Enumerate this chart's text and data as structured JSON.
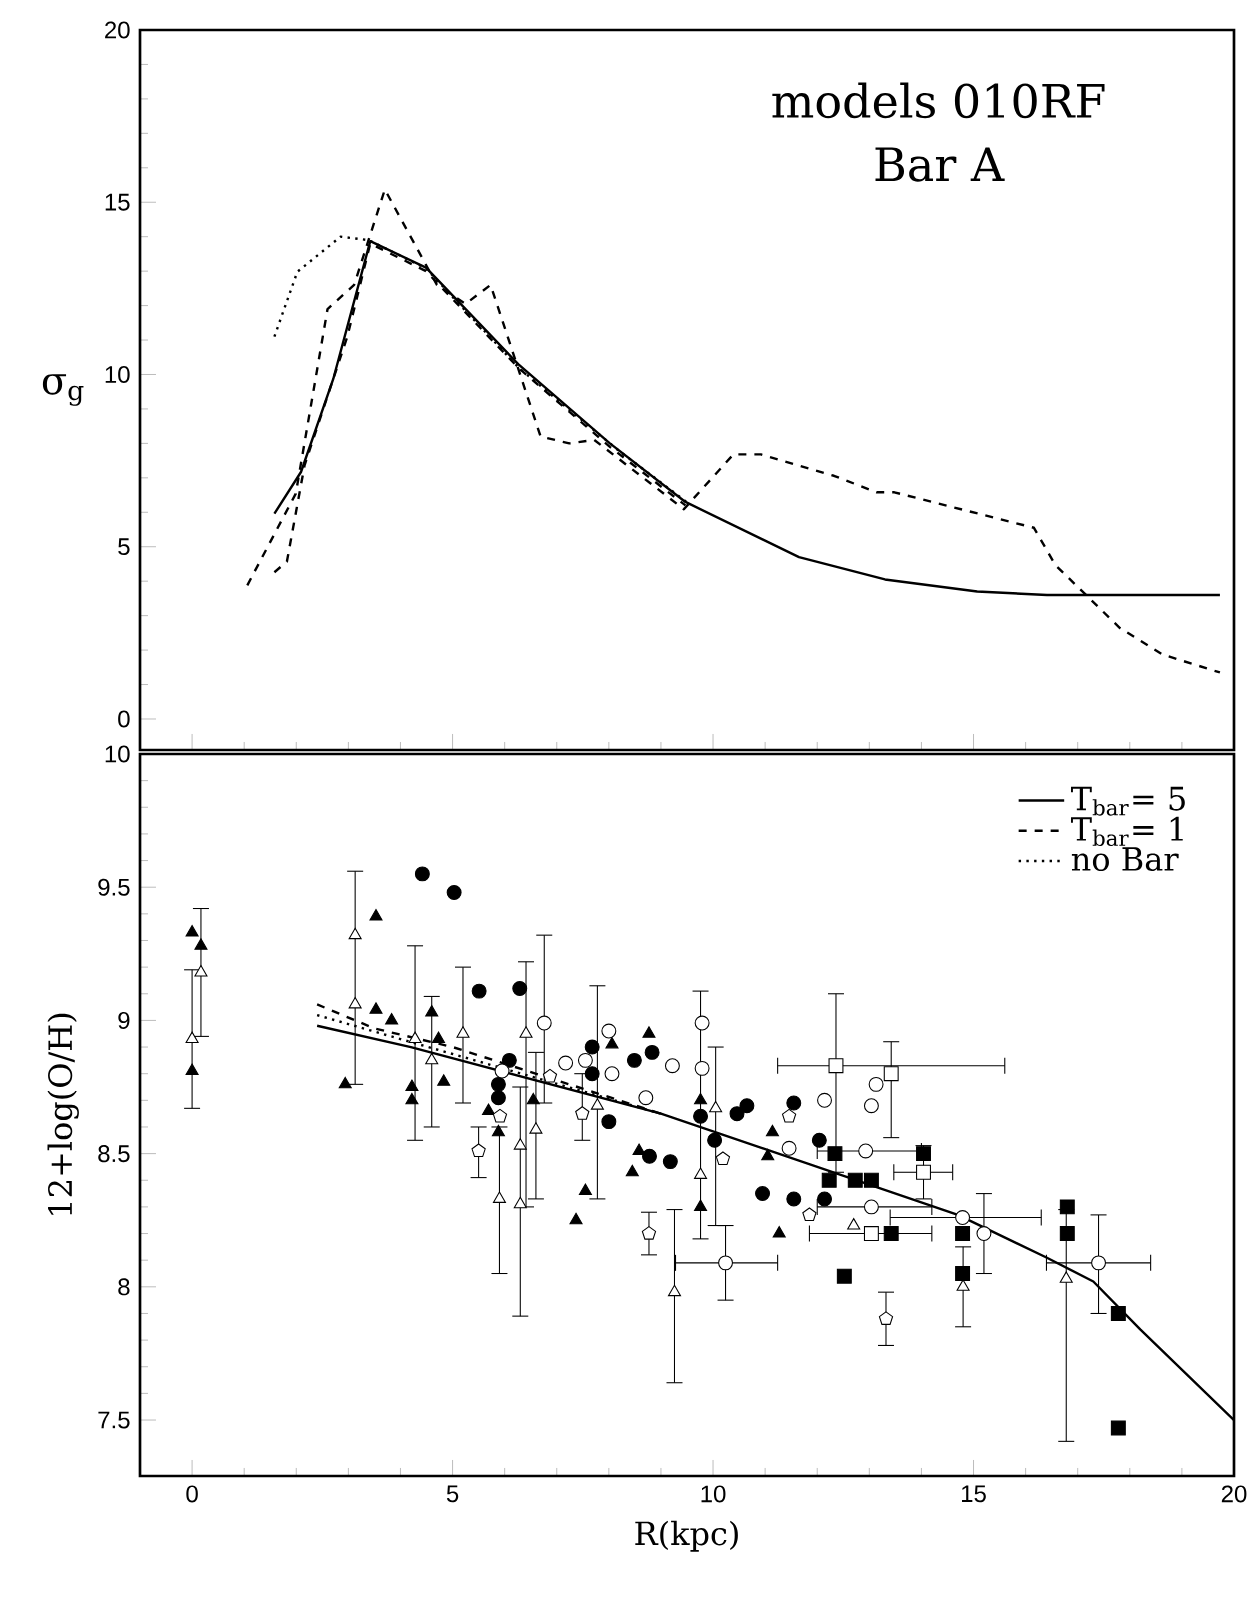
{
  "chart_data": [
    {
      "type": "line",
      "ylabel": "σ$_{g}$",
      "annotations": [
        "models 010RF",
        "Bar A"
      ],
      "xlim": [
        -1,
        20
      ],
      "ylim": [
        -0.9,
        20
      ],
      "xticks": [
        0,
        5,
        10,
        15,
        20
      ],
      "yticks": [
        0,
        5,
        10,
        15,
        20
      ],
      "tick_labels": "y",
      "series": [
        {
          "color": "#000000",
          "line_style": "solid",
          "x": [
            1.58,
            2.09,
            2.71,
            3.42,
            4.49,
            6.26,
            8.02,
            9.47,
            11.65,
            13.3,
            15.07,
            16.41,
            19.73
          ],
          "values": [
            5.96,
            7.17,
            9.87,
            13.87,
            13.1,
            10.3,
            8.0,
            6.3,
            4.7,
            4.05,
            3.7,
            3.6,
            3.6
          ]
        },
        {
          "color": "#000000",
          "line_style": "dashed",
          "x": [
            1.58,
            1.82,
            2.16,
            2.98,
            3.42,
            4.49,
            6.26,
            8.02,
            9.47
          ],
          "values": [
            4.26,
            4.57,
            7.37,
            11.1,
            13.8,
            13.0,
            10.2,
            7.9,
            6.2
          ]
        },
        {
          "color": "#000000",
          "line_style": "dashed",
          "x": [
            1.06,
            1.99,
            2.6,
            3.11,
            3.7,
            4.7,
            5.25,
            5.73,
            6.69,
            7.24,
            7.72,
            9.44,
            10.39,
            10.92,
            12.32,
            13.14,
            13.48,
            16.16,
            16.57,
            17.81,
            18.63,
            19.73
          ],
          "values": [
            3.88,
            6.54,
            11.9,
            12.6,
            15.37,
            12.6,
            12.05,
            12.6,
            8.2,
            8.0,
            8.1,
            6.09,
            7.68,
            7.68,
            7.06,
            6.58,
            6.58,
            5.55,
            4.47,
            2.64,
            1.87,
            1.35
          ]
        },
        {
          "color": "#000000",
          "line_style": "dotted",
          "x": [
            1.58,
            2.02,
            2.85,
            3.39,
            4.49,
            6.28,
            8.19,
            9.5
          ],
          "values": [
            11.1,
            12.98,
            14.0,
            13.9,
            13.08,
            10.18,
            7.79,
            6.29
          ]
        }
      ]
    },
    {
      "type": "scatter",
      "xlabel": "R(kpc)",
      "ylabel": "12+log(O/H)",
      "xlim": [
        -1,
        20
      ],
      "ylim": [
        7.29,
        10
      ],
      "xticks": [
        0,
        5,
        10,
        15,
        20
      ],
      "yticks": [
        7.5,
        8,
        8.5,
        9,
        9.5,
        10
      ],
      "legend": "top right",
      "series": [
        {
          "type": "line",
          "name": "T$_{bar}$= 5",
          "color": "#000000",
          "line_style": "solid",
          "x": [
            2.4,
            4.2,
            9.0,
            14.7,
            16.4,
            17.3,
            18.2,
            20
          ],
          "values": [
            8.98,
            8.9,
            8.65,
            8.27,
            8.11,
            8.02,
            7.84,
            7.5
          ]
        },
        {
          "type": "line",
          "name": "T$_{bar}$= 1",
          "color": "#000000",
          "line_style": "dashed",
          "x": [
            2.4,
            3.5,
            5.0,
            9.0
          ],
          "values": [
            9.06,
            8.97,
            8.9,
            8.65
          ]
        },
        {
          "type": "line",
          "name": "no Bar",
          "color": "#000000",
          "line_style": "dotted",
          "x": [
            2.4,
            4.0,
            9.0
          ],
          "values": [
            9.02,
            8.93,
            8.65
          ]
        },
        {
          "color": "#000000",
          "marker": "triangle filled",
          "x": [
            0,
            0.17,
            0,
            2.94,
            3.53,
            3.53,
            3.83,
            4.22,
            4.22,
            4.6,
            4.73,
            4.83,
            5.69,
            5.88,
            6.55,
            7.55,
            7.37,
            8.45,
            8.58,
            8.77,
            8.06,
            9.76,
            9.76,
            11.14,
            11.05,
            11.27
          ],
          "values": [
            9.33,
            9.28,
            8.81,
            8.76,
            9.39,
            9.04,
            9.0,
            8.75,
            8.7,
            9.03,
            8.93,
            8.77,
            8.66,
            8.58,
            8.7,
            8.36,
            8.25,
            8.43,
            8.51,
            8.95,
            8.91,
            8.7,
            8.3,
            8.58,
            8.49,
            8.2
          ]
        },
        {
          "color": "#000000",
          "marker": "triangle",
          "x": [
            0,
            0.17,
            3.13,
            3.13,
            4.28,
            4.6,
            5.2,
            5.9,
            6.3,
            6.41,
            6.3,
            6.6,
            7.78,
            9.26,
            9.76,
            10.05,
            12.7,
            14.64,
            14.8,
            16.78
          ],
          "values": [
            8.93,
            9.18,
            9.32,
            9.06,
            8.93,
            8.85,
            8.95,
            8.33,
            8.31,
            8.95,
            8.53,
            8.59,
            8.68,
            7.98,
            8.42,
            8.67,
            8.23,
            null,
            8.0,
            8.03
          ],
          "errors": [
            [
              8.67,
              9.19
            ],
            [
              8.94,
              9.42
            ],
            [
              8.76,
              9.56
            ],
            null,
            [
              8.55,
              9.28
            ],
            [
              8.6,
              9.09
            ],
            [
              8.69,
              9.2
            ],
            [
              8.05,
              8.6
            ],
            [
              7.89,
              8.75
            ],
            [
              8.3,
              9.22
            ],
            null,
            [
              8.33,
              8.88
            ],
            [
              8.33,
              9.13
            ],
            [
              7.64,
              8.29
            ],
            [
              8.18,
              9.11
            ],
            [
              8.23,
              8.9
            ],
            null,
            null,
            [
              7.85,
              8.15
            ],
            [
              7.42,
              8.29
            ]
          ]
        },
        {
          "color": "#000000",
          "marker": "circle filled",
          "x": [
            4.42,
            5.03,
            5.51,
            6.29,
            6.09,
            5.88,
            5.88,
            8.0,
            7.68,
            7.68,
            8.49,
            8.83,
            8.78,
            9.18,
            9.76,
            10.03,
            10.46,
            10.65,
            10.95,
            11.55,
            11.55,
            12.04,
            12.14
          ],
          "values": [
            9.55,
            9.48,
            9.11,
            9.12,
            8.85,
            8.76,
            8.71,
            8.62,
            8.8,
            8.9,
            8.85,
            8.88,
            8.49,
            8.47,
            8.64,
            8.55,
            8.65,
            8.68,
            8.35,
            8.69,
            8.33,
            8.55,
            8.33
          ]
        },
        {
          "color": "#000000",
          "marker": "square filled",
          "x": [
            12.34,
            12.23,
            12.73,
            13.04,
            12.52,
            13.42,
            14.04,
            14.79,
            14.79,
            16.8,
            16.8,
            17.78,
            17.78
          ],
          "values": [
            8.5,
            8.4,
            8.4,
            8.4,
            8.04,
            8.2,
            8.5,
            8.2,
            8.05,
            8.3,
            8.2,
            7.9,
            7.47
          ]
        },
        {
          "color": "#000000",
          "marker": "circle",
          "x": [
            6.76,
            5.95,
            7.17,
            7.55,
            8.06,
            8.0,
            8.71,
            9.22,
            9.79,
            9.79,
            10.24,
            11.46,
            12.14,
            13.13,
            13.04,
            12.93,
            13.04,
            14.79,
            15.2,
            17.4
          ],
          "values": [
            8.99,
            8.81,
            8.84,
            8.85,
            8.8,
            8.96,
            8.71,
            8.83,
            8.82,
            8.99,
            8.09,
            8.52,
            8.7,
            8.76,
            8.68,
            8.51,
            8.3,
            8.26,
            8.2,
            8.09
          ],
          "errors": [
            [
              8.69,
              9.32
            ],
            null,
            null,
            null,
            null,
            null,
            null,
            null,
            null,
            null,
            [
              7.95,
              8.23
            ],
            null,
            null,
            null,
            null,
            null,
            null,
            null,
            [
              8.05,
              8.35
            ],
            [
              7.9,
              8.27
            ]
          ],
          "xerrors": [
            null,
            null,
            null,
            null,
            null,
            null,
            null,
            null,
            null,
            null,
            [
              9.28,
              11.24
            ],
            null,
            null,
            null,
            null,
            [
              12.0,
              14.0
            ],
            [
              12.0,
              14.2
            ],
            [
              13.4,
              16.3
            ],
            null,
            [
              16.4,
              18.4
            ]
          ]
        },
        {
          "color": "#000000",
          "marker": "square",
          "x": [
            12.36,
            13.42,
            14.04,
            13.04
          ],
          "values": [
            8.83,
            8.8,
            8.43,
            8.2
          ],
          "errors": [
            [
              8.43,
              9.1
            ],
            [
              8.56,
              8.92
            ],
            [
              8.33,
              8.53
            ],
            null
          ],
          "xerrors": [
            [
              11.24,
              15.6
            ],
            null,
            [
              13.47,
              14.6
            ],
            [
              11.85,
              14.2
            ]
          ]
        },
        {
          "color": "#000000",
          "x": [
            5.5,
            5.91,
            7.49,
            8.77,
            6.87,
            11.46,
            11.85,
            13.32,
            10.19
          ],
          "values": [
            8.51,
            8.64,
            8.65,
            8.2,
            8.79,
            8.64,
            8.27,
            7.88,
            8.48
          ],
          "errors": [
            [
              8.41,
              8.6
            ],
            null,
            [
              8.55,
              8.8
            ],
            [
              8.12,
              8.28
            ],
            null,
            null,
            null,
            [
              7.78,
              7.98
            ],
            null
          ]
        }
      ]
    }
  ]
}
